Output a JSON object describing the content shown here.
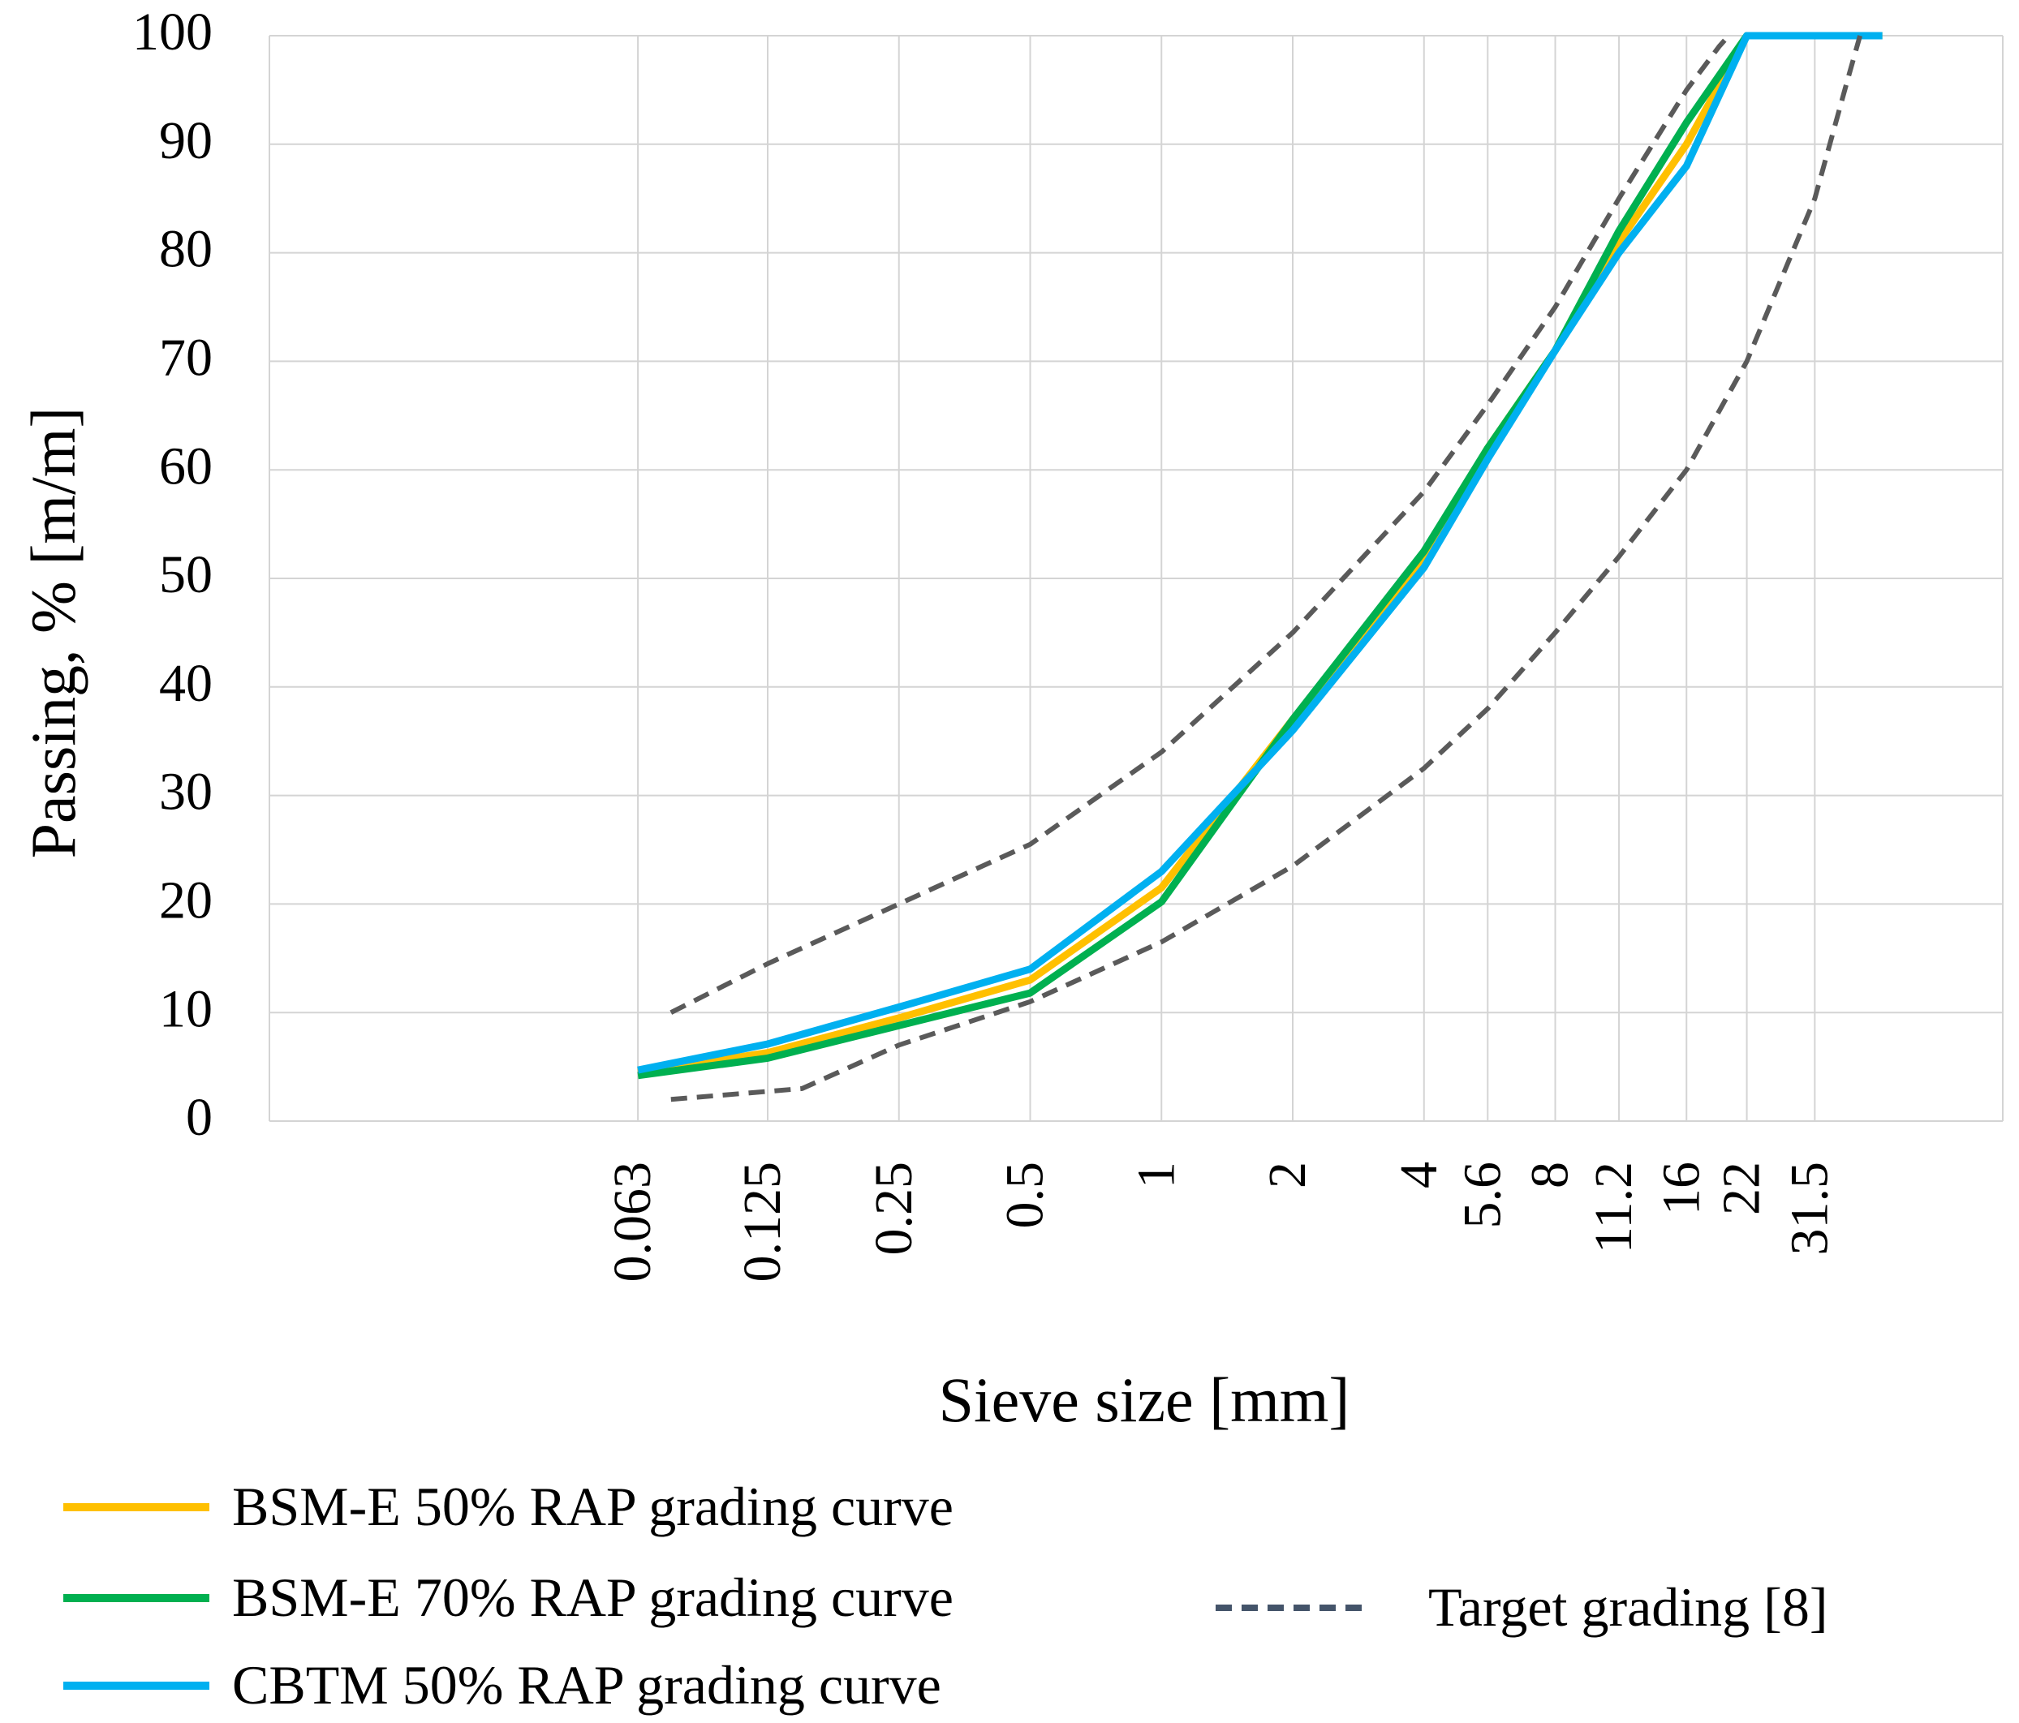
{
  "chart_data": {
    "type": "line",
    "title": "",
    "xlabel": "Sieve size [mm]",
    "ylabel": "Passing, % [m/m]",
    "x_scale": "log",
    "ylim": [
      0,
      100
    ],
    "y_ticks": [
      "0",
      "10",
      "20",
      "30",
      "40",
      "50",
      "60",
      "70",
      "80",
      "90",
      "100"
    ],
    "x_ticks": [
      {
        "label": "0.063",
        "value": 0.063
      },
      {
        "label": "0.125",
        "value": 0.125
      },
      {
        "label": "0.25",
        "value": 0.25
      },
      {
        "label": "0.5",
        "value": 0.5
      },
      {
        "label": "1",
        "value": 1
      },
      {
        "label": "2",
        "value": 2
      },
      {
        "label": "4",
        "value": 4
      },
      {
        "label": "5.6",
        "value": 5.6
      },
      {
        "label": "8",
        "value": 8
      },
      {
        "label": "11.2",
        "value": 11.2
      },
      {
        "label": "16",
        "value": 16
      },
      {
        "label": "22",
        "value": 22
      },
      {
        "label": "31.5",
        "value": 31.5
      }
    ],
    "series": [
      {
        "name": "BSM-E 50% RAP grading curve",
        "color": "#FFC000",
        "dash": false,
        "x": [
          0.063,
          0.125,
          0.25,
          0.5,
          1,
          2,
          4,
          5.6,
          8,
          11.2,
          16,
          22,
          31.5,
          45
        ],
        "y": [
          4.5,
          6.3,
          9.5,
          13,
          21.5,
          37,
          52,
          62,
          71,
          81,
          90,
          100,
          100,
          100
        ]
      },
      {
        "name": "BSM-E 70% RAP grading curve",
        "color": "#00B050",
        "dash": false,
        "x": [
          0.063,
          0.125,
          0.25,
          0.5,
          1,
          2,
          4,
          5.6,
          8,
          11.2,
          16,
          22,
          31.5,
          45
        ],
        "y": [
          4.2,
          5.8,
          8.8,
          11.8,
          20.2,
          37,
          52.5,
          62,
          71,
          82,
          92,
          100,
          100,
          100
        ]
      },
      {
        "name": "CBTM 50% RAP grading curve",
        "color": "#00B0F0",
        "dash": false,
        "x": [
          0.063,
          0.125,
          0.25,
          0.5,
          1,
          2,
          4,
          5.6,
          8,
          11.2,
          16,
          22,
          31.5,
          45
        ],
        "y": [
          4.7,
          7.1,
          10.5,
          14,
          23,
          36,
          51,
          61,
          71,
          80,
          88,
          100,
          100,
          100
        ]
      },
      {
        "name": "Target grading [8]",
        "color": "#5A5A5A",
        "dash": true,
        "legend": true,
        "x": [
          0.075,
          0.125,
          0.25,
          0.5,
          1,
          2,
          4,
          5.6,
          8,
          11.2,
          16,
          19,
          20
        ],
        "y": [
          10,
          14.5,
          20,
          25.5,
          34,
          45,
          58,
          66,
          75,
          85,
          95,
          99,
          100
        ]
      },
      {
        "name": "Target grading [8] lower",
        "color": "#5A5A5A",
        "dash": true,
        "legend": false,
        "x": [
          0.075,
          0.15,
          0.25,
          0.5,
          1,
          2,
          4,
          5.6,
          8,
          11.2,
          16,
          22,
          31.5,
          37.5,
          40
        ],
        "y": [
          2,
          3,
          7,
          11,
          16.5,
          23.5,
          32.5,
          38,
          45,
          52,
          60,
          70,
          85,
          96,
          100
        ]
      }
    ],
    "legend_position": "bottom"
  }
}
